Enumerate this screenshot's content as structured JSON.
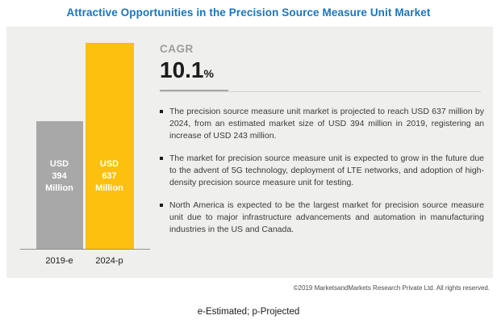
{
  "title": "Attractive Opportunities in the Precision Source Measure Unit Market",
  "chart_data": {
    "type": "bar",
    "categories": [
      "2019-e",
      "2024-p"
    ],
    "values": [
      394,
      637
    ],
    "bar_labels": [
      "USD\n394\nMillion",
      "USD\n637\nMillion"
    ],
    "bar_colors": [
      "#a8a8a8",
      "#fec00f"
    ],
    "ylim": [
      0,
      640
    ],
    "title": "Attractive Opportunities in the Precision Source Measure Unit Market",
    "xlabel": "",
    "ylabel": "",
    "grid": false,
    "legend": false
  },
  "cagr": {
    "label": "CAGR",
    "value": "10.1",
    "unit": "%"
  },
  "bullets": [
    "The precision source measure unit market is projected to reach USD 637 million by 2024, from an estimated market size of USD 394 million in 2019, registering an increase of USD 243 million.",
    "The market for precision source measure unit is expected to grow in the future due to the advent of 5G technology, deployment of LTE networks, and adoption of high-density precision source measure unit for testing.",
    "North America is expected to be the largest market for precision source measure unit due to major infrastructure advancements and automation in manufacturing industries in the US and Canada."
  ],
  "copyright": "©2019 MarketsandMarkets Research Private Ltd. All rights reserved.",
  "footnote": "e-Estimated; p-Projected",
  "colors": {
    "title_blue": "#1b75bc",
    "bar_gray": "#a8a8a8",
    "bar_yellow": "#fec00f",
    "panel_bg": "#efefee",
    "bullet_text": "#3a3a3a"
  }
}
